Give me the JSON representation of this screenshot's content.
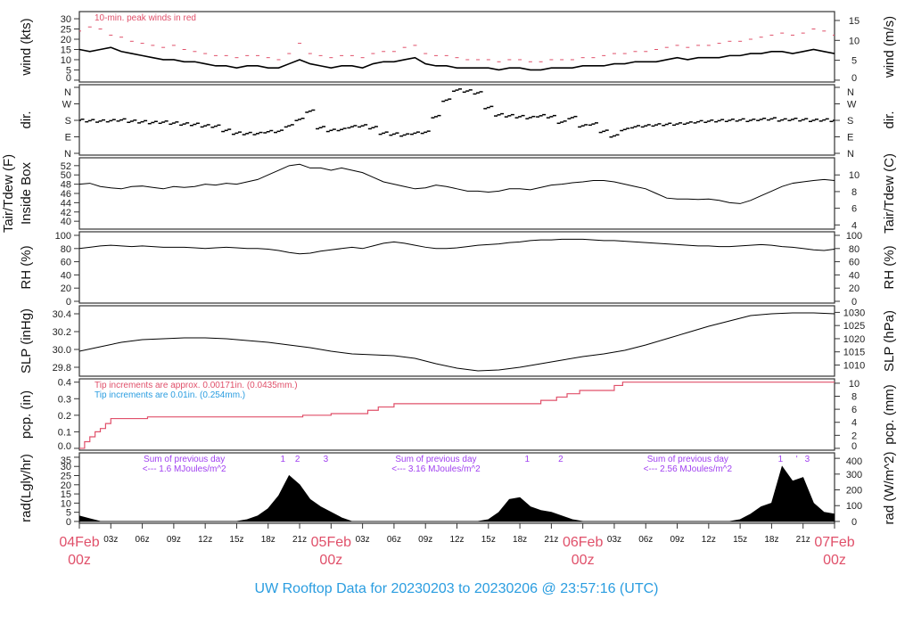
{
  "title": "UW Rooftop Data for 20230203  to  20230206 @ 23:57:16  (UTC)",
  "colors": {
    "series": "#000000",
    "gust": "#e0506a",
    "precip": "#e0506a",
    "note_blue": "#2a9de0",
    "note_purple": "#a040f0",
    "date_label": "#e0506a",
    "title": "#2a9de0"
  },
  "chart_data": {
    "type": "line",
    "x_unit": "hours since 04Feb 00z",
    "xlim": [
      0,
      72
    ],
    "x_ticks": [
      {
        "h": 0,
        "major": true,
        "l1": "04Feb",
        "l2": "00z"
      },
      {
        "h": 3,
        "l1": "03z"
      },
      {
        "h": 6,
        "l1": "06z"
      },
      {
        "h": 9,
        "l1": "09z"
      },
      {
        "h": 12,
        "l1": "12z"
      },
      {
        "h": 15,
        "l1": "15z"
      },
      {
        "h": 18,
        "l1": "18z"
      },
      {
        "h": 21,
        "l1": "21z"
      },
      {
        "h": 24,
        "major": true,
        "l1": "05Feb",
        "l2": "00z"
      },
      {
        "h": 27,
        "l1": "03z"
      },
      {
        "h": 30,
        "l1": "06z"
      },
      {
        "h": 33,
        "l1": "09z"
      },
      {
        "h": 36,
        "l1": "12z"
      },
      {
        "h": 39,
        "l1": "15z"
      },
      {
        "h": 42,
        "l1": "18z"
      },
      {
        "h": 45,
        "l1": "21z"
      },
      {
        "h": 48,
        "major": true,
        "l1": "06Feb",
        "l2": "00z"
      },
      {
        "h": 51,
        "l1": "03z"
      },
      {
        "h": 54,
        "l1": "06z"
      },
      {
        "h": 57,
        "l1": "09z"
      },
      {
        "h": 60,
        "l1": "12z"
      },
      {
        "h": 63,
        "l1": "15z"
      },
      {
        "h": 66,
        "l1": "18z"
      },
      {
        "h": 69,
        "l1": "21z"
      },
      {
        "h": 72,
        "major": true,
        "l1": "07Feb",
        "l2": "00z"
      }
    ],
    "panels": [
      {
        "id": "wind",
        "ylabel": "wind (kts)",
        "ylabel_right": "wind (m/s)",
        "ylim": [
          -0.9,
          33.5
        ],
        "left_ticks": [
          "0",
          "5",
          "10",
          "15",
          "20",
          "25",
          "30"
        ],
        "right_ticks": [
          "0",
          "5",
          "10",
          "15"
        ],
        "note": "10-min. peak winds in red",
        "series": [
          {
            "name": "wind",
            "values": [
              15,
              14,
              15,
              16,
              14,
              13,
              12,
              11,
              10,
              10,
              9,
              9,
              8,
              7,
              7,
              6,
              7,
              7,
              6,
              6,
              8,
              10,
              8,
              7,
              6,
              7,
              7,
              6,
              8,
              9,
              9,
              10,
              11,
              8,
              7,
              7,
              6,
              6,
              6,
              6,
              5,
              6,
              6,
              5,
              5,
              6,
              6,
              6,
              7,
              7,
              7,
              8,
              8,
              9,
              9,
              9,
              10,
              11,
              10,
              11,
              11,
              11,
              12,
              12,
              13,
              13,
              14,
              14,
              13,
              14,
              15,
              14,
              13
            ]
          },
          {
            "name": "peak",
            "values": [
              24,
              26,
              25,
              22,
              21,
              19,
              18,
              17,
              16,
              17,
              15,
              14,
              13,
              12,
              12,
              11,
              12,
              12,
              11,
              10,
              13,
              18,
              13,
              12,
              11,
              12,
              12,
              11,
              13,
              14,
              14,
              16,
              17,
              13,
              12,
              12,
              11,
              10,
              10,
              10,
              9,
              10,
              10,
              9,
              9,
              10,
              10,
              10,
              11,
              11,
              12,
              13,
              13,
              14,
              14,
              15,
              16,
              17,
              16,
              17,
              17,
              18,
              19,
              19,
              20,
              21,
              22,
              23,
              22,
              23,
              25,
              24,
              22
            ]
          }
        ]
      },
      {
        "id": "dir",
        "ylabel": "dir.",
        "ylabel_right": "dir.",
        "ylim": [
          -9.7,
          374.6
        ],
        "ticks": [
          {
            "v": 0,
            "l": "N"
          },
          {
            "v": 90,
            "l": "E"
          },
          {
            "v": 180,
            "l": "S"
          },
          {
            "v": 270,
            "l": "W"
          },
          {
            "v": 360,
            "l": "N"
          }
        ],
        "series": [
          {
            "name": "direction_deg",
            "values": [
              180,
              178,
              176,
              178,
              182,
              175,
              172,
              168,
              170,
              165,
              160,
              158,
              150,
              148,
              125,
              110,
              108,
              108,
              118,
              120,
              150,
              185,
              230,
              140,
              125,
              130,
              145,
              150,
              140,
              110,
              105,
              100,
              110,
              115,
              200,
              290,
              345,
              340,
              330,
              250,
              210,
              205,
              200,
              195,
              205,
              200,
              170,
              195,
              150,
              160,
              120,
              95,
              130,
              145,
              150,
              155,
              158,
              160,
              165,
              172,
              175,
              178,
              180,
              182,
              180,
              185,
              188,
              182,
              185,
              183,
              180,
              182,
              180
            ]
          }
        ]
      },
      {
        "id": "temp",
        "ylabel": "Tair/Tdew (F)",
        "ylabel2": "Inside Box",
        "ylabel_right": "Tair/Tdew (C)",
        "ylim": [
          38.3,
          53.7
        ],
        "left_ticks": [
          "40",
          "42",
          "44",
          "46",
          "48",
          "50",
          "52"
        ],
        "right_ticks": [
          "4",
          "6",
          "8",
          "10"
        ],
        "series": [
          {
            "name": "Tair",
            "values": [
              48,
              48.2,
              47.5,
              47.2,
              47,
              47.5,
              47.6,
              47.3,
              47,
              47.5,
              47.3,
              47.5,
              48,
              47.8,
              48.2,
              48,
              48.5,
              49,
              50,
              51,
              52,
              52.3,
              51.5,
              51.5,
              51,
              51.5,
              51,
              50.5,
              49.5,
              48.5,
              48,
              47.5,
              47,
              47.2,
              47.8,
              47.5,
              47,
              46.5,
              46.5,
              46.3,
              46.5,
              47,
              47,
              46.8,
              47.3,
              47.8,
              48,
              48.3,
              48.5,
              48.8,
              48.8,
              48.5,
              48,
              47.5,
              47,
              46,
              45,
              44.8,
              44.8,
              44.7,
              44.8,
              44.5,
              44,
              43.8,
              44.5,
              45.5,
              46.5,
              47.5,
              48.2,
              48.5,
              48.8,
              49,
              48.8
            ]
          }
        ]
      },
      {
        "id": "rh",
        "ylabel": "RH (%)",
        "ylabel_right": "RH (%)",
        "ylim": [
          -2.7,
          105.4
        ],
        "left_ticks": [
          "0",
          "20",
          "40",
          "60",
          "80",
          "100"
        ],
        "right_ticks": [
          "0",
          "20",
          "40",
          "60",
          "80",
          "100"
        ],
        "series": [
          {
            "name": "RH",
            "values": [
              80,
              82,
              84,
              85,
              84,
              83,
              84,
              83,
              82,
              82,
              82,
              81,
              80,
              81,
              82,
              81,
              80,
              80,
              79,
              77,
              74,
              72,
              73,
              76,
              78,
              80,
              82,
              80,
              84,
              88,
              90,
              88,
              85,
              82,
              80,
              80,
              81,
              83,
              85,
              86,
              87,
              89,
              90,
              92,
              93,
              93,
              94,
              94,
              94,
              93,
              92,
              92,
              91,
              90,
              89,
              88,
              87,
              86,
              85,
              84,
              84,
              83,
              83,
              84,
              85,
              86,
              85,
              83,
              82,
              80,
              78,
              77,
              79
            ]
          }
        ]
      },
      {
        "id": "slp",
        "ylabel": "SLP (inHg)",
        "ylabel_right": "SLP (hPa)",
        "ylim": [
          29.7,
          30.49
        ],
        "left_ticks": [
          "29.8",
          "30.0",
          "30.2",
          "30.4"
        ],
        "right_ticks": [
          "1010",
          "1015",
          "1020",
          "1025",
          "1030"
        ],
        "series": [
          {
            "name": "SLP",
            "x_step_hours": 2,
            "values": [
              29.98,
              30.03,
              30.08,
              30.11,
              30.12,
              30.13,
              30.13,
              30.12,
              30.1,
              30.08,
              30.05,
              30.02,
              29.98,
              29.95,
              29.94,
              29.93,
              29.9,
              29.84,
              29.79,
              29.76,
              29.77,
              29.8,
              29.84,
              29.88,
              29.92,
              29.95,
              29.99,
              30.05,
              30.12,
              30.19,
              30.26,
              30.32,
              30.38,
              30.4,
              30.41,
              30.41,
              30.4
            ]
          }
        ]
      },
      {
        "id": "pcp",
        "ylabel": "pcp. (in)",
        "ylabel_right": "pcp. (mm)",
        "ylim": [
          -0.011,
          0.42
        ],
        "left_ticks": [
          "0.0",
          "0.1",
          "0.2",
          "0.3",
          "0.4"
        ],
        "right_ticks": [
          "0",
          "2",
          "4",
          "6",
          "8",
          "10"
        ],
        "note": "Tip increments are approx. 0.00171in. (0.0435mm.)",
        "note2": "Tip increments are 0.01in. (0.254mm.)",
        "series": [
          {
            "name": "accum_precip",
            "points": [
              [
                0,
                0
              ],
              [
                0.5,
                0.04
              ],
              [
                1,
                0.07
              ],
              [
                1.5,
                0.1
              ],
              [
                2,
                0.12
              ],
              [
                2.5,
                0.15
              ],
              [
                3,
                0.18
              ],
              [
                6.5,
                0.19
              ],
              [
                21.3,
                0.2
              ],
              [
                24,
                0.21
              ],
              [
                27.5,
                0.23
              ],
              [
                28.5,
                0.25
              ],
              [
                30,
                0.27
              ],
              [
                44,
                0.29
              ],
              [
                45.5,
                0.31
              ],
              [
                46.5,
                0.33
              ],
              [
                47.7,
                0.35
              ],
              [
                51,
                0.38
              ],
              [
                51.8,
                0.4
              ],
              [
                72,
                0.4
              ]
            ]
          }
        ]
      },
      {
        "id": "rad",
        "ylabel": "rad(Lgly/hr)",
        "ylabel_right": "rad (W/m^2)",
        "ylim": [
          -1,
          37.4
        ],
        "left_ticks": [
          "0",
          "5",
          "10",
          "15",
          "20",
          "25",
          "30",
          "35"
        ],
        "right_ticks": [
          "0",
          "100",
          "200",
          "300",
          "400"
        ],
        "series": [
          {
            "name": "radiation",
            "values": [
              3,
              1.5,
              0,
              0,
              0,
              0,
              0,
              0,
              0,
              0,
              0,
              0,
              0,
              0,
              0,
              0,
              1,
              3,
              7,
              14,
              25,
              20,
              12,
              8,
              5,
              2,
              0,
              0,
              0,
              0,
              0,
              0,
              0,
              0,
              0,
              0,
              0,
              0,
              0,
              1,
              5,
              12,
              13,
              8,
              6,
              5,
              3,
              1,
              0,
              0,
              0,
              0,
              0,
              0,
              0,
              0,
              0,
              0,
              0,
              0,
              0,
              0,
              0,
              1,
              4,
              8,
              10,
              30,
              22,
              24,
              10,
              5,
              4
            ]
          }
        ],
        "day_notes": [
          {
            "h": 10,
            "l1": "Sum of previous day",
            "l2": "<--- 1.6 MJoules/m^2"
          },
          {
            "h": 34,
            "l1": "Sum of previous day",
            "l2": "<--- 3.16 MJoules/m^2"
          },
          {
            "h": 58,
            "l1": "Sum of previous day",
            "l2": "<--- 2.56 MJoules/m^2"
          }
        ],
        "markers": [
          {
            "h": 19.4,
            "l": "1"
          },
          {
            "h": 20.8,
            "l": "2"
          },
          {
            "h": 23.5,
            "l": "3"
          },
          {
            "h": 42.7,
            "l": "1"
          },
          {
            "h": 45.9,
            "l": "2"
          },
          {
            "h": 67.1,
            "l": "1"
          },
          {
            "h": 68.2,
            "l": "'"
          },
          {
            "h": 69.4,
            "l": "3"
          }
        ]
      }
    ]
  }
}
